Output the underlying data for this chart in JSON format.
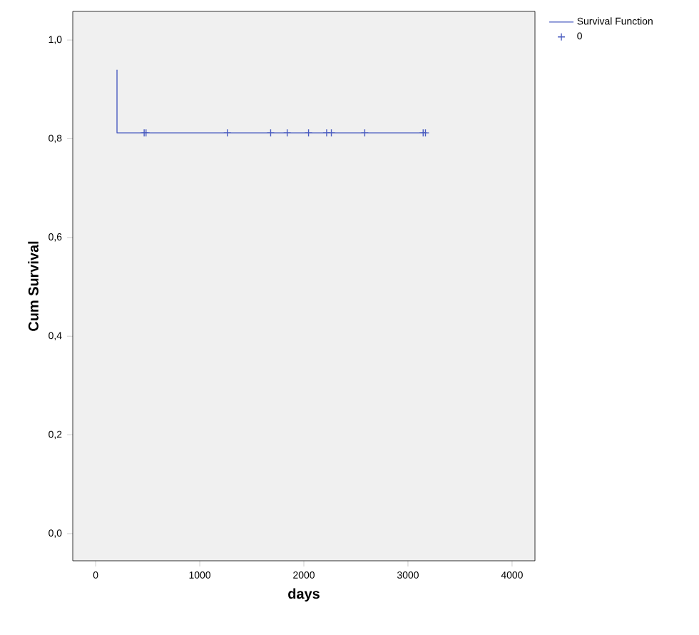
{
  "chart_data": {
    "type": "step",
    "xlabel": "days",
    "ylabel": "Cum Survival",
    "xlim": [
      -220,
      4220
    ],
    "ylim": [
      -0.055,
      1.058
    ],
    "xticks": [
      0,
      1000,
      2000,
      3000,
      4000
    ],
    "yticks": [
      {
        "value": 0,
        "label": "0,0"
      },
      {
        "value": 0.2,
        "label": "0,2"
      },
      {
        "value": 0.4,
        "label": "0,4"
      },
      {
        "value": 0.6,
        "label": "0,6"
      },
      {
        "value": 0.8,
        "label": "0,8"
      },
      {
        "value": 1,
        "label": "1,0"
      }
    ],
    "grid": false,
    "legend": "right",
    "series": [
      {
        "name": "Survival Function",
        "color": "#4a5cc0",
        "x": [
          205,
          205,
          3170
        ],
        "values": [
          0.94,
          0.812,
          0.812
        ]
      },
      {
        "name": "0",
        "type": "scatter",
        "marker": "cross",
        "color": "#4a5cc0",
        "x": [
          466,
          484,
          1265,
          1681,
          1840,
          2045,
          2219,
          2264,
          2585,
          3146,
          3168
        ],
        "values": [
          0.812,
          0.812,
          0.812,
          0.812,
          0.812,
          0.812,
          0.812,
          0.812,
          0.812,
          0.812,
          0.812
        ]
      }
    ]
  }
}
